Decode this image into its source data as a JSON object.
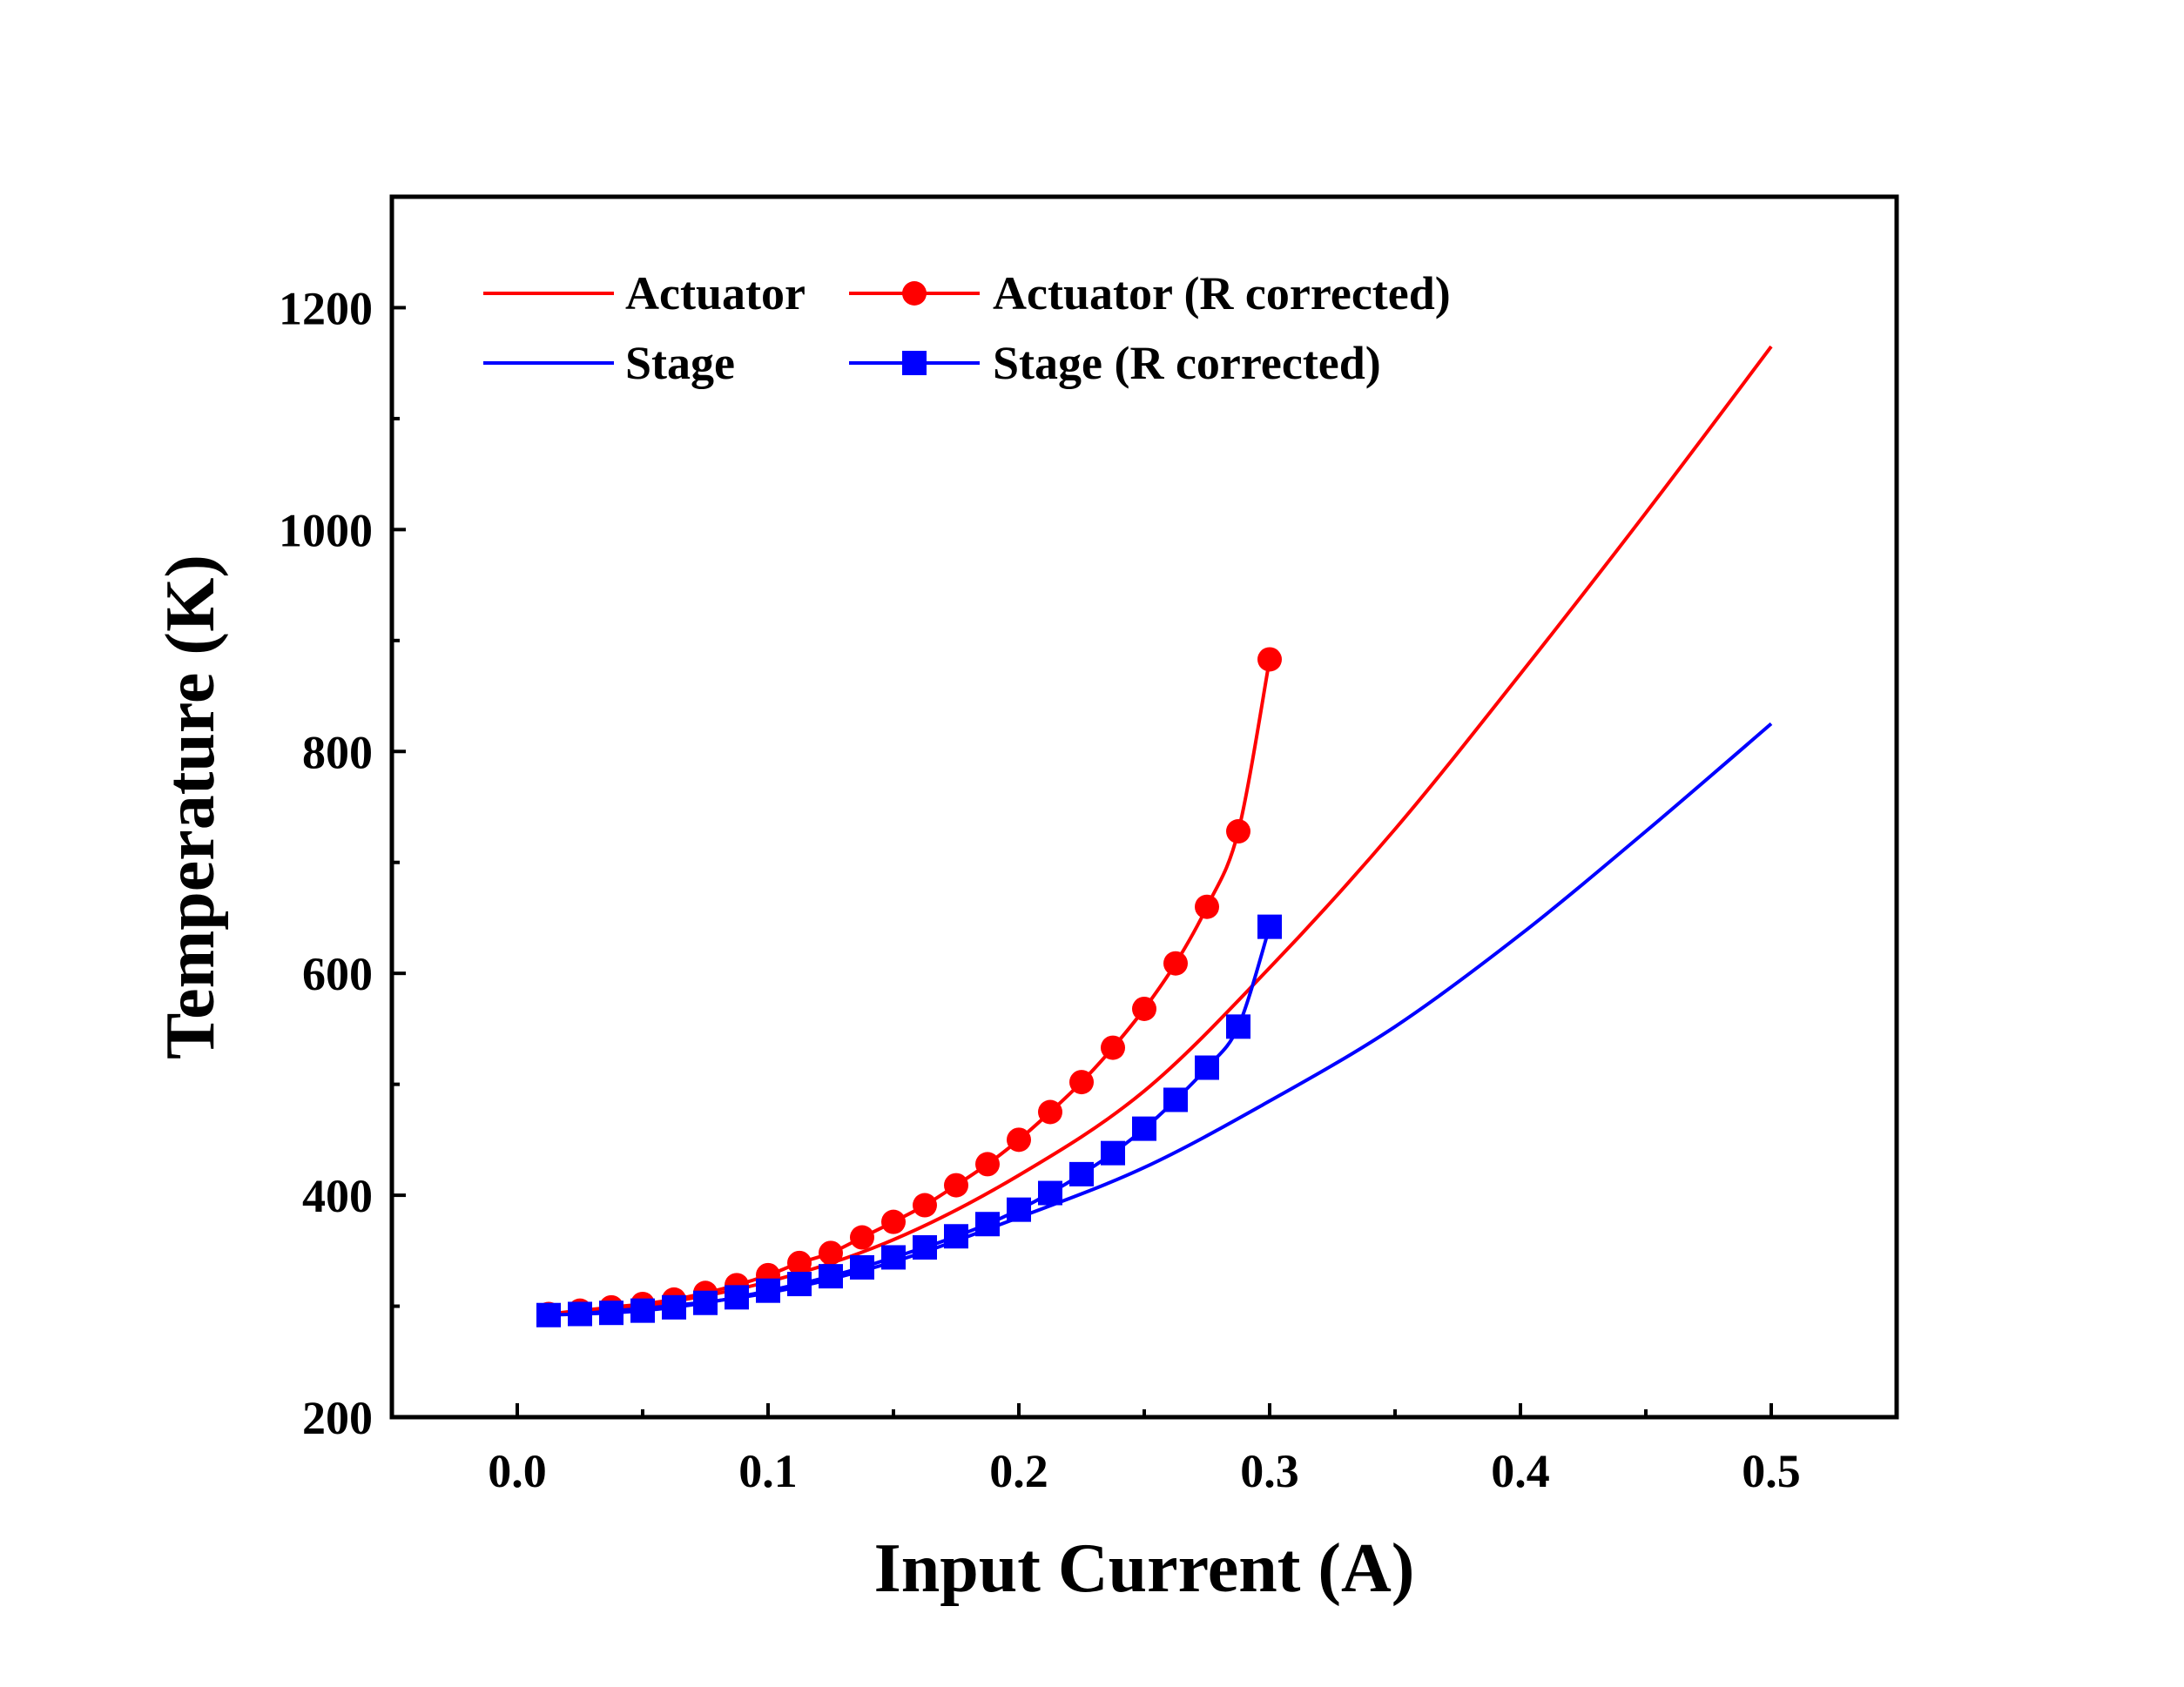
{
  "chart_data": {
    "type": "line",
    "title": "",
    "xlabel": "Input Current (A)",
    "ylabel": "Temperature (K)",
    "xlim": [
      -0.05,
      0.55
    ],
    "ylim": [
      200,
      1300
    ],
    "x_ticks": [
      0.0,
      0.1,
      0.2,
      0.3,
      0.4,
      0.5
    ],
    "x_tick_labels": [
      "0.0",
      "0.1",
      "0.2",
      "0.3",
      "0.4",
      "0.5"
    ],
    "y_ticks": [
      200,
      400,
      600,
      800,
      1000,
      1200
    ],
    "y_tick_labels": [
      "200",
      "400",
      "600",
      "800",
      "1000",
      "1200"
    ],
    "grid": false,
    "legend_position": "top-left",
    "series": [
      {
        "name": "Actuator",
        "color": "#ff0000",
        "marker": "none",
        "x": [
          0.0125,
          0.05,
          0.1,
          0.15,
          0.2,
          0.25,
          0.3,
          0.35,
          0.4,
          0.45,
          0.5
        ],
        "y": [
          293,
          300,
          322,
          360,
          418,
          494,
          605,
          730,
          870,
          1015,
          1165
        ]
      },
      {
        "name": "Stage",
        "color": "#0000ff",
        "marker": "none",
        "x": [
          0.0125,
          0.05,
          0.1,
          0.15,
          0.2,
          0.25,
          0.3,
          0.35,
          0.4,
          0.45,
          0.5
        ],
        "y": [
          293,
          298,
          312,
          340,
          380,
          425,
          485,
          552,
          635,
          728,
          825
        ]
      },
      {
        "name": "Actuator (R corrected)",
        "color": "#ff0000",
        "marker": "circle",
        "x": [
          0.0125,
          0.025,
          0.0375,
          0.05,
          0.0625,
          0.075,
          0.0875,
          0.1,
          0.1125,
          0.125,
          0.1375,
          0.15,
          0.1625,
          0.175,
          0.1875,
          0.2,
          0.2125,
          0.225,
          0.2375,
          0.25,
          0.2625,
          0.275,
          0.2875,
          0.3
        ],
        "y": [
          293,
          296,
          299,
          302,
          306,
          312,
          319,
          328,
          339,
          348,
          362,
          376,
          391,
          409,
          428,
          450,
          475,
          502,
          533,
          568,
          609,
          660,
          728,
          883
        ]
      },
      {
        "name": "Stage (R corrected)",
        "color": "#0000ff",
        "marker": "square",
        "x": [
          0.0125,
          0.025,
          0.0375,
          0.05,
          0.0625,
          0.075,
          0.0875,
          0.1,
          0.1125,
          0.125,
          0.1375,
          0.15,
          0.1625,
          0.175,
          0.1875,
          0.2,
          0.2125,
          0.225,
          0.2375,
          0.25,
          0.2625,
          0.275,
          0.2875,
          0.3
        ],
        "y": [
          292,
          293,
          294,
          296,
          299,
          303,
          308,
          314,
          320,
          327,
          335,
          344,
          353,
          363,
          374,
          387,
          402,
          419,
          438,
          460,
          486,
          515,
          552,
          642
        ]
      }
    ]
  }
}
